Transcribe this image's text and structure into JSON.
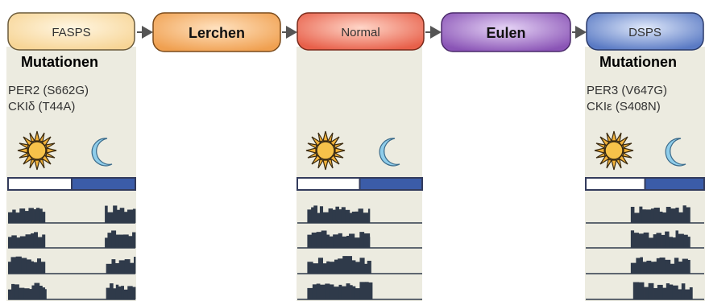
{
  "stages": [
    {
      "label": "FASPS",
      "fill": "#f7d596"
    },
    {
      "label": "Lerchen",
      "fill": "#f0a050"
    },
    {
      "label": "Normal",
      "fill": "#e8604a"
    },
    {
      "label": "Eulen",
      "fill": "#8a54b6"
    },
    {
      "label": "DSPS",
      "fill": "#5a7ac4"
    }
  ],
  "panels": [
    {
      "heading": "Mutationen",
      "lines": [
        "PER2 (S662G)",
        "CKIδ (T44A)"
      ],
      "light_fraction": 0.5,
      "actogram": [
        [
          [
            0.0,
            0.29
          ],
          [
            0.76,
            1.0
          ]
        ],
        [
          [
            0.0,
            0.29
          ],
          [
            0.76,
            1.0
          ]
        ],
        [
          [
            0.0,
            0.29
          ],
          [
            0.77,
            1.0
          ]
        ],
        [
          [
            0.0,
            0.3
          ],
          [
            0.77,
            1.0
          ]
        ]
      ]
    },
    {
      "heading": "",
      "lines": [],
      "light_fraction": 0.5,
      "actogram": [
        [
          [
            0.08,
            0.58
          ]
        ],
        [
          [
            0.08,
            0.58
          ]
        ],
        [
          [
            0.08,
            0.59
          ]
        ],
        [
          [
            0.08,
            0.6
          ]
        ]
      ]
    },
    {
      "heading": "Mutationen",
      "lines": [
        "PER3 (V647G)",
        "CKIε (S408N)"
      ],
      "light_fraction": 0.5,
      "actogram": [
        [
          [
            0.38,
            0.88
          ]
        ],
        [
          [
            0.38,
            0.88
          ]
        ],
        [
          [
            0.38,
            0.88
          ]
        ],
        [
          [
            0.4,
            0.9
          ]
        ]
      ]
    }
  ],
  "colors": {
    "panel_bg": "#ecebe0",
    "bar_border": "#333b5c",
    "dark_bar": "#3b5ca8",
    "activity": "#2f3a4a",
    "sun": "#f2b23a",
    "moon": "#7fc3e6",
    "arrow": "#555555"
  }
}
